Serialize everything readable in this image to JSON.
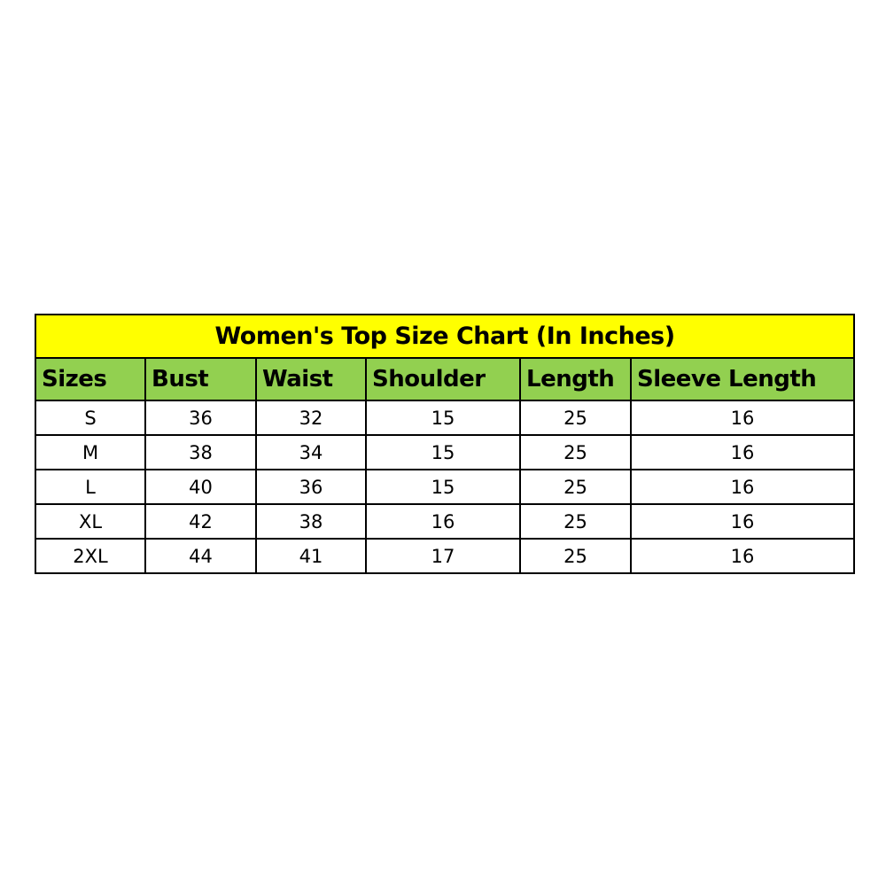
{
  "title": "Women's Top Size Chart (In Inches)",
  "colors": {
    "title_bg": "#FFFF00",
    "header_bg": "#92D050",
    "border": "#000000"
  },
  "columns": [
    "Sizes",
    "Bust",
    "Waist",
    "Shoulder",
    "Length",
    "Sleeve Length"
  ],
  "rows": [
    [
      "S",
      "36",
      "32",
      "15",
      "25",
      "16"
    ],
    [
      "M",
      "38",
      "34",
      "15",
      "25",
      "16"
    ],
    [
      "L",
      "40",
      "36",
      "15",
      "25",
      "16"
    ],
    [
      "XL",
      "42",
      "38",
      "16",
      "25",
      "16"
    ],
    [
      "2XL",
      "44",
      "41",
      "17",
      "25",
      "16"
    ]
  ]
}
